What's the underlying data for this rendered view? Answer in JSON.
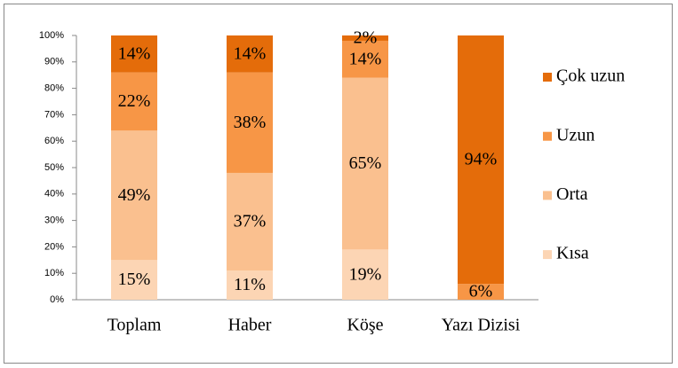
{
  "chart_data": {
    "type": "stacked_bar",
    "categories": [
      "Toplam",
      "Haber",
      "Köşe",
      "Yazı Dizisi"
    ],
    "series": [
      {
        "name": "Kısa",
        "color": "#fcd5b4",
        "values": [
          15,
          11,
          19,
          null
        ],
        "value_labels": [
          "15%",
          "11%",
          "19%",
          null
        ]
      },
      {
        "name": "Orta",
        "color": "#fac08f",
        "values": [
          49,
          37,
          65,
          null
        ],
        "value_labels": [
          "49%",
          "37%",
          "65%",
          null
        ]
      },
      {
        "name": "Uzun",
        "color": "#f79646",
        "values": [
          22,
          38,
          14,
          6
        ],
        "value_labels": [
          "22%",
          "38%",
          "14%",
          "6%"
        ]
      },
      {
        "name": "Çok uzun",
        "color": "#e46c0a",
        "values": [
          14,
          14,
          2,
          94
        ],
        "value_labels": [
          "14%",
          "14%",
          "2%",
          "94%"
        ]
      }
    ],
    "ylim": [
      0,
      100
    ],
    "yticks": [
      {
        "value": 0,
        "label": "0%"
      },
      {
        "value": 10,
        "label": "10%"
      },
      {
        "value": 20,
        "label": "20%"
      },
      {
        "value": 30,
        "label": "30%"
      },
      {
        "value": 40,
        "label": "40%"
      },
      {
        "value": 50,
        "label": "50%"
      },
      {
        "value": 60,
        "label": "60%"
      },
      {
        "value": 70,
        "label": "70%"
      },
      {
        "value": 80,
        "label": "80%"
      },
      {
        "value": 90,
        "label": "90%"
      },
      {
        "value": 100,
        "label": "100%"
      }
    ],
    "legend": "right"
  }
}
